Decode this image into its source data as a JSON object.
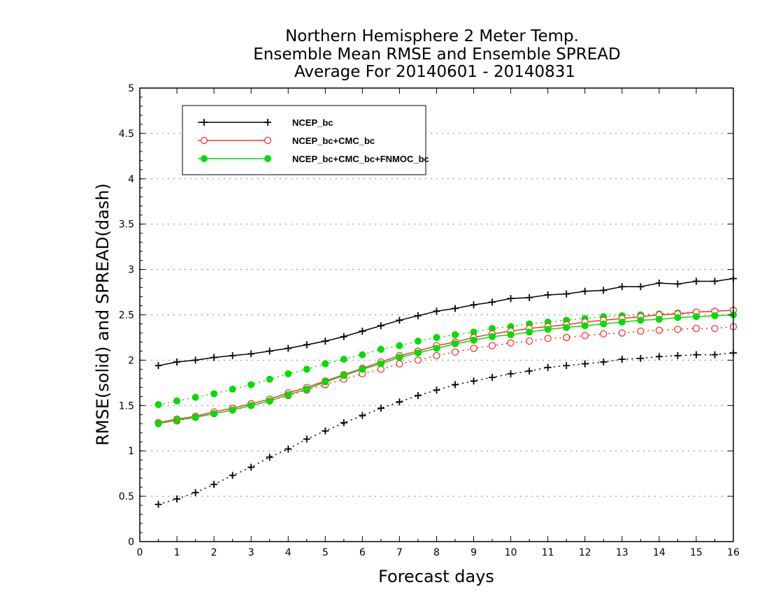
{
  "chart_data": {
    "type": "line",
    "title": [
      "Northern Hemisphere 2 Meter Temp.",
      "Ensemble Mean RMSE and Ensemble SPREAD",
      "Average For 20140601 - 20140831"
    ],
    "xlabel": "Forecast days",
    "ylabel": "RMSE(solid) and SPREAD(dash)",
    "xlim": [
      0,
      16
    ],
    "ylim": [
      0,
      5
    ],
    "xticks": [
      "0",
      "1",
      "2",
      "3",
      "4",
      "5",
      "6",
      "7",
      "8",
      "9",
      "10",
      "11",
      "12",
      "13",
      "14",
      "15",
      "16"
    ],
    "yticks": [
      "0",
      "0.5",
      "1",
      "1.5",
      "2",
      "2.5",
      "3",
      "3.5",
      "4",
      "4.5",
      "5"
    ],
    "grid": true,
    "legend_position": "top-left",
    "x": [
      0.5,
      1,
      1.5,
      2,
      2.5,
      3,
      3.5,
      4,
      4.5,
      5,
      5.5,
      6,
      6.5,
      7,
      7.5,
      8,
      8.5,
      9,
      9.5,
      10,
      10.5,
      11,
      11.5,
      12,
      12.5,
      13,
      13.5,
      14,
      14.5,
      15,
      15.5,
      16
    ],
    "series": [
      {
        "name": "NCEP_bc",
        "color": "#000000",
        "marker": "plus",
        "rmse": [
          1.94,
          1.98,
          2.0,
          2.03,
          2.05,
          2.07,
          2.1,
          2.13,
          2.17,
          2.21,
          2.26,
          2.32,
          2.38,
          2.44,
          2.49,
          2.54,
          2.57,
          2.61,
          2.64,
          2.68,
          2.69,
          2.72,
          2.73,
          2.76,
          2.77,
          2.81,
          2.81,
          2.85,
          2.84,
          2.87,
          2.87,
          2.9
        ],
        "spread": [
          0.41,
          0.47,
          0.54,
          0.63,
          0.73,
          0.82,
          0.93,
          1.02,
          1.13,
          1.22,
          1.31,
          1.39,
          1.47,
          1.54,
          1.61,
          1.67,
          1.73,
          1.77,
          1.81,
          1.85,
          1.88,
          1.92,
          1.94,
          1.96,
          1.98,
          2.01,
          2.02,
          2.04,
          2.05,
          2.06,
          2.06,
          2.08
        ]
      },
      {
        "name": "NCEP_bc+CMC_bc",
        "color": "#ff3030",
        "marker": "open-circle",
        "rmse": [
          1.31,
          1.35,
          1.38,
          1.43,
          1.47,
          1.52,
          1.57,
          1.64,
          1.7,
          1.77,
          1.84,
          1.91,
          1.98,
          2.05,
          2.1,
          2.16,
          2.2,
          2.25,
          2.29,
          2.32,
          2.35,
          2.37,
          2.39,
          2.42,
          2.44,
          2.46,
          2.48,
          2.5,
          2.51,
          2.53,
          2.54,
          2.55
        ],
        "spread": [
          1.31,
          1.33,
          1.37,
          1.41,
          1.45,
          1.5,
          1.55,
          1.61,
          1.67,
          1.73,
          1.79,
          1.85,
          1.9,
          1.96,
          2.0,
          2.05,
          2.09,
          2.13,
          2.16,
          2.19,
          2.21,
          2.24,
          2.25,
          2.27,
          2.29,
          2.3,
          2.32,
          2.33,
          2.34,
          2.35,
          2.35,
          2.37
        ]
      },
      {
        "name": "NCEP_bc+CMC_bc+FNMOC_bc",
        "color": "#00dd00",
        "marker": "filled-circle",
        "rmse": [
          1.3,
          1.34,
          1.37,
          1.41,
          1.45,
          1.5,
          1.55,
          1.62,
          1.68,
          1.76,
          1.83,
          1.9,
          1.96,
          2.03,
          2.08,
          2.13,
          2.18,
          2.22,
          2.26,
          2.28,
          2.31,
          2.34,
          2.36,
          2.38,
          2.4,
          2.42,
          2.44,
          2.45,
          2.47,
          2.48,
          2.49,
          2.5
        ],
        "spread": [
          1.51,
          1.55,
          1.59,
          1.63,
          1.68,
          1.73,
          1.79,
          1.85,
          1.9,
          1.96,
          2.01,
          2.06,
          2.12,
          2.16,
          2.21,
          2.25,
          2.28,
          2.31,
          2.35,
          2.37,
          2.4,
          2.42,
          2.44,
          2.46,
          2.48,
          2.49,
          2.5,
          2.51,
          2.52,
          2.53,
          2.54,
          2.55
        ]
      }
    ]
  }
}
